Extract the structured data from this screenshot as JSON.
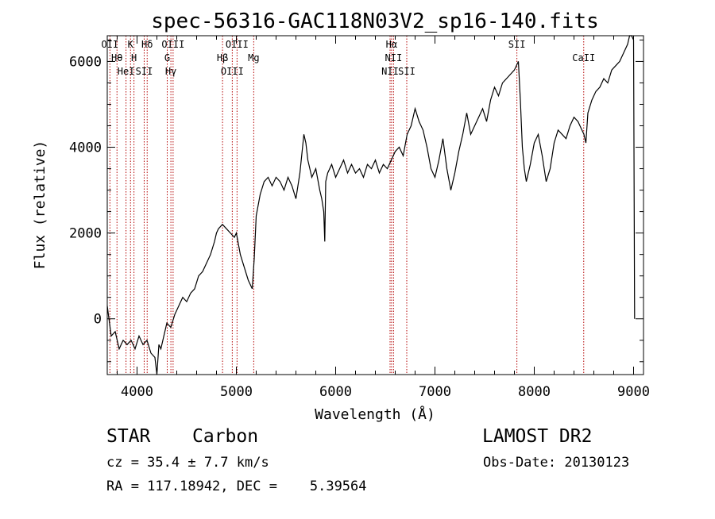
{
  "chart_data": {
    "type": "line",
    "title": "spec-56316-GAC118N03V2_sp16-140.fits",
    "xlabel": "Wavelength (Å)",
    "ylabel": "Flux (relative)",
    "xlim": [
      3700,
      9100
    ],
    "ylim": [
      -1300,
      6600
    ],
    "xticks": [
      4000,
      5000,
      6000,
      7000,
      8000,
      9000
    ],
    "yticks": [
      0,
      2000,
      4000,
      6000
    ],
    "grid": false,
    "series": [
      {
        "x": [
          3700,
          3740,
          3780,
          3820,
          3860,
          3900,
          3940,
          3980,
          4020,
          4060,
          4100,
          4140,
          4180,
          4200,
          4220,
          4240,
          4260,
          4300,
          4340,
          4380,
          4420,
          4460,
          4500,
          4540,
          4580,
          4620,
          4660,
          4700,
          4740,
          4780,
          4800,
          4820,
          4860,
          4900,
          4940,
          4980,
          5000,
          5040,
          5080,
          5120,
          5160,
          5180,
          5200,
          5240,
          5280,
          5320,
          5360,
          5400,
          5440,
          5480,
          5520,
          5560,
          5600,
          5640,
          5680,
          5700,
          5720,
          5760,
          5800,
          5840,
          5860,
          5880,
          5890,
          5900,
          5920,
          5960,
          6000,
          6040,
          6080,
          6120,
          6160,
          6200,
          6240,
          6280,
          6320,
          6360,
          6400,
          6440,
          6480,
          6520,
          6560,
          6600,
          6640,
          6680,
          6720,
          6760,
          6800,
          6840,
          6880,
          6920,
          6960,
          7000,
          7040,
          7080,
          7120,
          7160,
          7200,
          7240,
          7280,
          7320,
          7360,
          7400,
          7440,
          7480,
          7520,
          7560,
          7600,
          7640,
          7680,
          7720,
          7760,
          7800,
          7840,
          7860,
          7880,
          7900,
          7920,
          7960,
          8000,
          8040,
          8080,
          8120,
          8160,
          8200,
          8240,
          8280,
          8320,
          8360,
          8400,
          8440,
          8480,
          8500,
          8520,
          8540,
          8580,
          8620,
          8660,
          8700,
          8740,
          8780,
          8820,
          8860,
          8900,
          8940,
          8960,
          8980,
          9000,
          9010
        ],
        "y": [
          300,
          -400,
          -300,
          -700,
          -500,
          -600,
          -500,
          -700,
          -400,
          -600,
          -500,
          -800,
          -900,
          -1300,
          -600,
          -700,
          -500,
          -100,
          -200,
          100,
          300,
          500,
          400,
          600,
          700,
          1000,
          1100,
          1300,
          1500,
          1800,
          2000,
          2100,
          2200,
          2100,
          2000,
          1900,
          2000,
          1500,
          1200,
          900,
          700,
          1400,
          2400,
          2900,
          3200,
          3300,
          3100,
          3300,
          3200,
          3000,
          3300,
          3100,
          2800,
          3400,
          4300,
          4100,
          3700,
          3300,
          3500,
          3000,
          2800,
          2500,
          1800,
          3200,
          3400,
          3600,
          3300,
          3500,
          3700,
          3400,
          3600,
          3400,
          3500,
          3300,
          3600,
          3500,
          3700,
          3400,
          3600,
          3500,
          3700,
          3900,
          4000,
          3800,
          4300,
          4500,
          4900,
          4600,
          4400,
          4000,
          3500,
          3300,
          3700,
          4200,
          3500,
          3000,
          3400,
          3900,
          4300,
          4800,
          4300,
          4500,
          4700,
          4900,
          4600,
          5100,
          5400,
          5200,
          5500,
          5600,
          5700,
          5800,
          6000,
          5100,
          4000,
          3500,
          3200,
          3600,
          4100,
          4300,
          3800,
          3200,
          3500,
          4100,
          4400,
          4300,
          4200,
          4500,
          4700,
          4600,
          4400,
          4300,
          4100,
          4800,
          5100,
          5300,
          5400,
          5600,
          5500,
          5800,
          5900,
          6000,
          6200,
          6400,
          6600,
          6700,
          6500,
          0
        ]
      }
    ],
    "lines": [
      {
        "x": 3727,
        "label": "OII"
      },
      {
        "x": 3798,
        "label": "Hθ"
      },
      {
        "x": 3889,
        "label": "HeI"
      },
      {
        "x": 3934,
        "label": "K"
      },
      {
        "x": 3969,
        "label": "H"
      },
      {
        "x": 4072,
        "label": "SII"
      },
      {
        "x": 4102,
        "label": "Hδ"
      },
      {
        "x": 4304,
        "label": "G"
      },
      {
        "x": 4341,
        "label": "Hγ"
      },
      {
        "x": 4363,
        "label": "OIII"
      },
      {
        "x": 4861,
        "label": "Hβ"
      },
      {
        "x": 4959,
        "label": "OIII"
      },
      {
        "x": 5007,
        "label": "OIII"
      },
      {
        "x": 5175,
        "label": "Mg"
      },
      {
        "x": 6548,
        "label": "NII"
      },
      {
        "x": 6563,
        "label": "Hα"
      },
      {
        "x": 6583,
        "label": "NII"
      },
      {
        "x": 6716,
        "label": "SII"
      },
      {
        "x": 7825,
        "label": "SII"
      },
      {
        "x": 8498,
        "label": "CaII"
      }
    ]
  },
  "info": {
    "class": "STAR",
    "subclass": "Carbon",
    "survey": "LAMOST DR2",
    "redshift": "cz = 35.4 ± 7.7 km/s",
    "obs_date": "Obs-Date: 20130123",
    "coords": "RA = 117.18942, DEC =    5.39564"
  }
}
